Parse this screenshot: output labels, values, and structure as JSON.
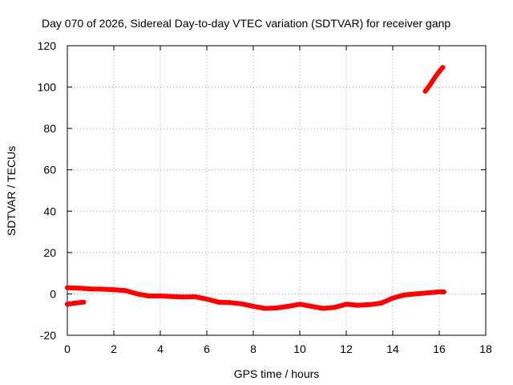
{
  "chart_data": {
    "type": "scatter",
    "title": "Day 070 of 2026, Sidereal Day-to-day VTEC variation (SDTVAR) for receiver ganp",
    "xlabel": "GPS time / hours",
    "ylabel": "SDTVAR / TECUs",
    "xlim": [
      0,
      18
    ],
    "ylim": [
      -20,
      120
    ],
    "xticks": [
      0,
      2,
      4,
      6,
      8,
      10,
      12,
      14,
      16,
      18
    ],
    "yticks": [
      -20,
      0,
      20,
      40,
      60,
      80,
      100,
      120
    ],
    "grid": true,
    "series_color": "#ff0000",
    "series": [
      {
        "name": "main-trace",
        "points": [
          [
            0.0,
            3
          ],
          [
            0.5,
            2.8
          ],
          [
            1.0,
            2.4
          ],
          [
            1.5,
            2.3
          ],
          [
            2.0,
            2
          ],
          [
            2.5,
            1.6
          ],
          [
            3.0,
            0
          ],
          [
            3.5,
            -1
          ],
          [
            4.0,
            -1
          ],
          [
            4.5,
            -1.3
          ],
          [
            5.0,
            -1.5
          ],
          [
            5.5,
            -1.4
          ],
          [
            6.0,
            -2.5
          ],
          [
            6.5,
            -4
          ],
          [
            7.0,
            -4.2
          ],
          [
            7.5,
            -4.8
          ],
          [
            8.0,
            -6
          ],
          [
            8.5,
            -7
          ],
          [
            9.0,
            -6.8
          ],
          [
            9.5,
            -6
          ],
          [
            10.0,
            -5
          ],
          [
            10.5,
            -6
          ],
          [
            11.0,
            -7
          ],
          [
            11.5,
            -6.5
          ],
          [
            12.0,
            -5
          ],
          [
            12.5,
            -5.5
          ],
          [
            13.0,
            -5.2
          ],
          [
            13.5,
            -4.5
          ],
          [
            14.0,
            -2
          ],
          [
            14.5,
            -0.5
          ],
          [
            15.0,
            0
          ],
          [
            15.5,
            0.5
          ],
          [
            16.0,
            1
          ],
          [
            16.2,
            1
          ]
        ]
      },
      {
        "name": "start-segment",
        "points": [
          [
            0.0,
            -5
          ],
          [
            0.3,
            -4.5
          ],
          [
            0.7,
            -4
          ]
        ]
      },
      {
        "name": "rising-segment",
        "points": [
          [
            15.4,
            98
          ],
          [
            15.6,
            101
          ],
          [
            15.8,
            104.5
          ],
          [
            16.0,
            107.5
          ],
          [
            16.15,
            109.5
          ]
        ]
      }
    ]
  }
}
